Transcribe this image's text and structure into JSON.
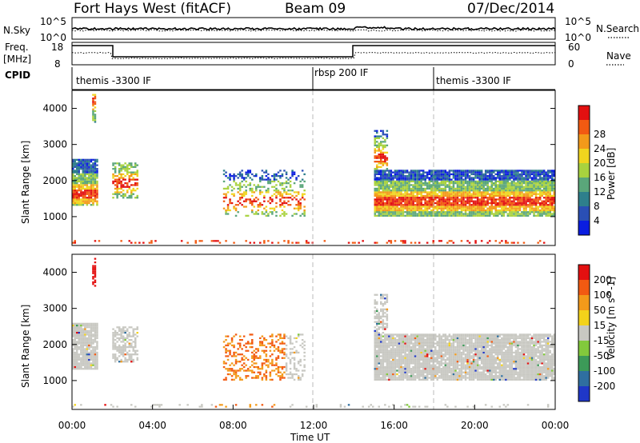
{
  "header": {
    "title_left": "Fort Hays West (fitACF)",
    "title_center": "Beam 09",
    "title_right": "07/Dec/2014"
  },
  "top_panels": {
    "nsky_label": "N.Sky",
    "nsky_ticks": [
      "10^5",
      "10^0"
    ],
    "nsearch_label": "N.Search",
    "nsearch_ticks": [
      "10^5",
      "10^0"
    ],
    "freq_label_1": "Freq.",
    "freq_label_2": "[MHz]",
    "freq_ticks": [
      "18",
      "8"
    ],
    "nave_label": "Nave",
    "nave_ticks": [
      "60",
      "0"
    ],
    "cpid_label": "CPID",
    "cpid_segments": [
      {
        "label": "themis -3300 IF"
      },
      {
        "label": "rbsp 200 IF"
      },
      {
        "label": "themis -3300 IF"
      }
    ]
  },
  "chart_data": [
    {
      "type": "heatmap",
      "panel": "power",
      "ylabel": "Slant Range [km]",
      "xlabel": "",
      "x_ticks": [
        "00:00",
        "04:00",
        "08:00",
        "12:00",
        "16:00",
        "20:00",
        "00:00"
      ],
      "y_ticks": [
        "1000",
        "2000",
        "3000",
        "4000"
      ],
      "colorbar_label": "Power [dB]",
      "colorbar_ticks": [
        "4",
        "8",
        "12",
        "16",
        "20",
        "24",
        "28"
      ],
      "colors": [
        "#0a1de0",
        "#2a4fb5",
        "#2e7f8c",
        "#5aa67a",
        "#a8d23e",
        "#f0d51e",
        "#f39a1a",
        "#f25a12",
        "#e31010"
      ]
    },
    {
      "type": "heatmap",
      "panel": "velocity",
      "ylabel": "Slant Range [km]",
      "xlabel": "Time UT",
      "x_ticks": [
        "00:00",
        "04:00",
        "08:00",
        "12:00",
        "16:00",
        "20:00",
        "00:00"
      ],
      "y_ticks": [
        "1000",
        "2000",
        "3000",
        "4000"
      ],
      "colorbar_label": "Velocity [m s^-1]",
      "colorbar_ticks": [
        "200",
        "100",
        "50",
        "15",
        "-15",
        "-50",
        "-100",
        "-200"
      ],
      "colors": [
        "#1f37c8",
        "#2f6fa0",
        "#3c9a58",
        "#82c93c",
        "#c8c8c2",
        "#f3d21a",
        "#f39a1a",
        "#f25a12",
        "#e31010"
      ]
    }
  ]
}
